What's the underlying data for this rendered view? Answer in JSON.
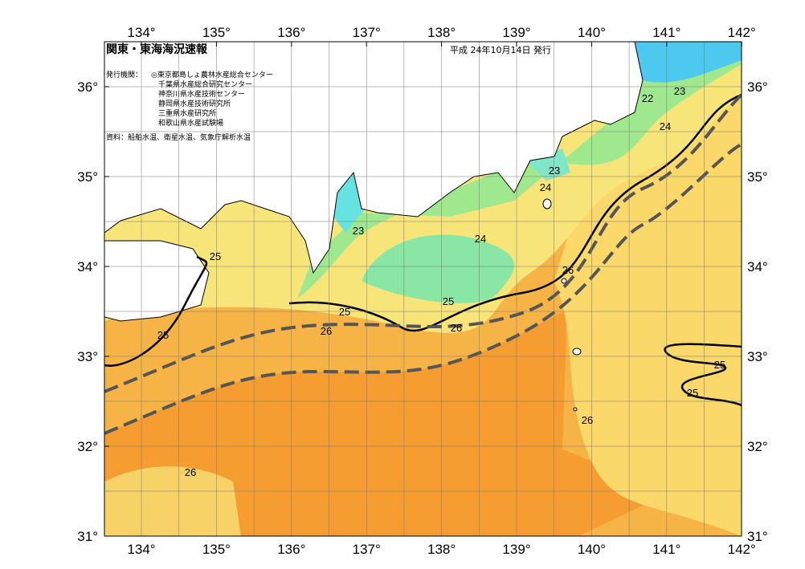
{
  "map": {
    "title": "関東・東海海況速報",
    "date": "平成  24年10月14日 発行",
    "publisher_label": "発行機関：",
    "publishers": [
      "◎東京都島しょ農林水産総合センター",
      "千葉県水産総合研究センター",
      "神奈川県水産技術センター",
      "静岡県水産技術研究所",
      "三重県水産研究所",
      "和歌山県水産試験場"
    ],
    "source": "資料：船舶水温、衛星水温、気象庁解析水温",
    "lon_ticks": [
      {
        "value": 134,
        "label": "134°"
      },
      {
        "value": 135,
        "label": "135°"
      },
      {
        "value": 136,
        "label": "136°"
      },
      {
        "value": 137,
        "label": "137°"
      },
      {
        "value": 138,
        "label": "138°"
      },
      {
        "value": 139,
        "label": "139°"
      },
      {
        "value": 140,
        "label": "140°"
      },
      {
        "value": 141,
        "label": "141°"
      },
      {
        "value": 142,
        "label": "142°"
      }
    ],
    "lat_ticks": [
      {
        "value": 36,
        "label": "36°"
      },
      {
        "value": 35,
        "label": "35°"
      },
      {
        "value": 34,
        "label": "34°"
      },
      {
        "value": 33,
        "label": "33°"
      },
      {
        "value": 32,
        "label": "32°"
      },
      {
        "value": 31,
        "label": "31°"
      }
    ],
    "contour_labels": [
      "22",
      "23",
      "24",
      "23",
      "24",
      "23",
      "24",
      "25",
      "26",
      "25",
      "25",
      "26",
      "26",
      "25",
      "25",
      "25",
      "26",
      "26"
    ]
  }
}
